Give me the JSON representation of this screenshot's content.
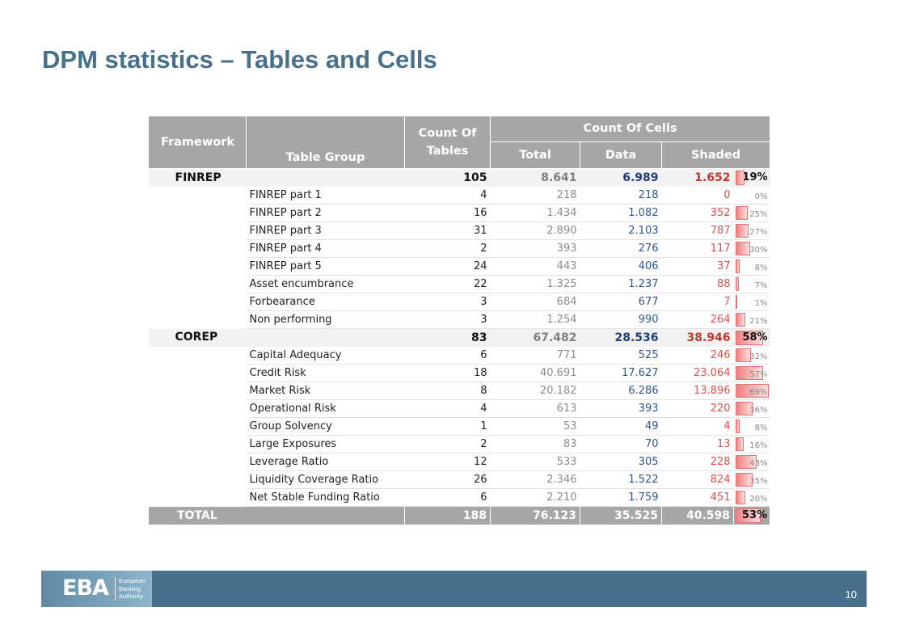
{
  "title": {
    "bold": "DPM statistics",
    "rest": " – Tables and Cells"
  },
  "table": {
    "headers": {
      "framework": "Framework",
      "table_group": "Table Group",
      "count_of_tables": "Count Of Tables",
      "count_of_cells": "Count Of Cells",
      "total": "Total",
      "data": "Data",
      "shaded": "Shaded"
    },
    "groups": [
      {
        "framework": "FINREP",
        "tables": "105",
        "total": "8.641",
        "data": "6.989",
        "shaded": "1.652",
        "pct": "19%",
        "pct_value": 19,
        "rows": [
          {
            "name": "FINREP part 1",
            "tables": "4",
            "total": "218",
            "data": "218",
            "shaded": "0",
            "pct": "0%",
            "pct_value": 0
          },
          {
            "name": "FINREP part 2",
            "tables": "16",
            "total": "1.434",
            "data": "1.082",
            "shaded": "352",
            "pct": "25%",
            "pct_value": 25
          },
          {
            "name": "FINREP part 3",
            "tables": "31",
            "total": "2.890",
            "data": "2.103",
            "shaded": "787",
            "pct": "27%",
            "pct_value": 27
          },
          {
            "name": "FINREP part 4",
            "tables": "2",
            "total": "393",
            "data": "276",
            "shaded": "117",
            "pct": "30%",
            "pct_value": 30
          },
          {
            "name": "FINREP part 5",
            "tables": "24",
            "total": "443",
            "data": "406",
            "shaded": "37",
            "pct": "8%",
            "pct_value": 8
          },
          {
            "name": "Asset encumbrance",
            "tables": "22",
            "total": "1.325",
            "data": "1.237",
            "shaded": "88",
            "pct": "7%",
            "pct_value": 7
          },
          {
            "name": "Forbearance",
            "tables": "3",
            "total": "684",
            "data": "677",
            "shaded": "7",
            "pct": "1%",
            "pct_value": 1
          },
          {
            "name": "Non performing",
            "tables": "3",
            "total": "1.254",
            "data": "990",
            "shaded": "264",
            "pct": "21%",
            "pct_value": 21
          }
        ]
      },
      {
        "framework": "COREP",
        "tables": "83",
        "total": "67.482",
        "data": "28.536",
        "shaded": "38.946",
        "pct": "58%",
        "pct_value": 58,
        "rows": [
          {
            "name": "Capital Adequacy",
            "tables": "6",
            "total": "771",
            "data": "525",
            "shaded": "246",
            "pct": "32%",
            "pct_value": 32
          },
          {
            "name": "Credit Risk",
            "tables": "18",
            "total": "40.691",
            "data": "17.627",
            "shaded": "23.064",
            "pct": "57%",
            "pct_value": 57
          },
          {
            "name": "Market Risk",
            "tables": "8",
            "total": "20.182",
            "data": "6.286",
            "shaded": "13.896",
            "pct": "69%",
            "pct_value": 69
          },
          {
            "name": "Operational Risk",
            "tables": "4",
            "total": "613",
            "data": "393",
            "shaded": "220",
            "pct": "36%",
            "pct_value": 36
          },
          {
            "name": "Group Solvency",
            "tables": "1",
            "total": "53",
            "data": "49",
            "shaded": "4",
            "pct": "8%",
            "pct_value": 8
          },
          {
            "name": "Large Exposures",
            "tables": "2",
            "total": "83",
            "data": "70",
            "shaded": "13",
            "pct": "16%",
            "pct_value": 16
          },
          {
            "name": "Leverage Ratio",
            "tables": "12",
            "total": "533",
            "data": "305",
            "shaded": "228",
            "pct": "43%",
            "pct_value": 43
          },
          {
            "name": "Liquidity Coverage Ratio",
            "tables": "26",
            "total": "2.346",
            "data": "1.522",
            "shaded": "824",
            "pct": "35%",
            "pct_value": 35
          },
          {
            "name": "Net Stable Funding Ratio",
            "tables": "6",
            "total": "2.210",
            "data": "1.759",
            "shaded": "451",
            "pct": "20%",
            "pct_value": 20
          }
        ]
      }
    ],
    "total": {
      "label": "TOTAL",
      "tables": "188",
      "total": "76.123",
      "data": "35.525",
      "shaded": "40.598",
      "pct": "53%",
      "pct_value": 53
    }
  },
  "footer": {
    "logo_mark": "EBA",
    "logo_text": [
      "European",
      "Banking",
      "Authority"
    ],
    "page_number": "10"
  },
  "colors": {
    "title": "#47708d",
    "header_bg": "#a6a6a6",
    "group_bg": "#f2f2f2",
    "data_blue": "#2e5591",
    "shaded_red": "#d9534f",
    "footer_bg": "#47708d"
  }
}
